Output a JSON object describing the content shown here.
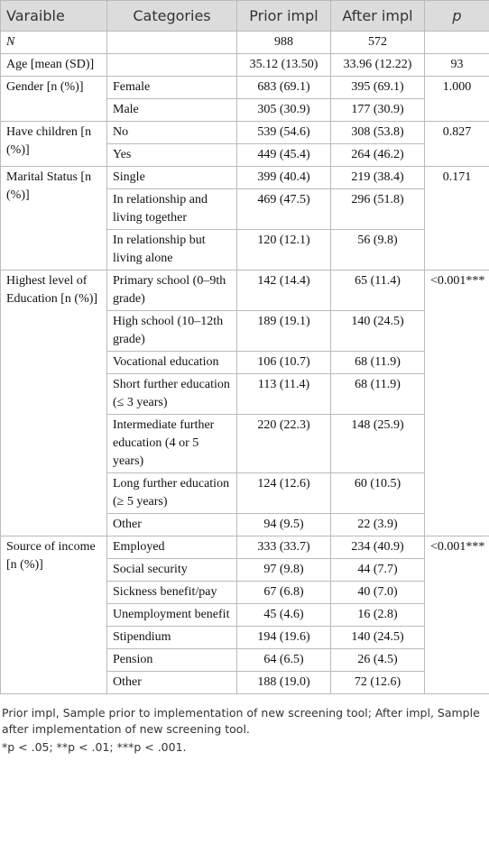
{
  "table": {
    "header": [
      "Varaible",
      "Categories",
      "Prior impl",
      "After impl",
      "p"
    ],
    "groups": [
      {
        "variable": "N",
        "rows": [
          {
            "prior": "988",
            "after": "572"
          }
        ]
      },
      {
        "variable": "Age [mean (SD)]",
        "p": "93",
        "rows": [
          {
            "prior": "35.12 (13.50)",
            "after": "33.96 (12.22)"
          }
        ]
      },
      {
        "variable": "Gender [n (%)]",
        "p": "1.000",
        "rows": [
          {
            "category": "Female",
            "prior": "683 (69.1)",
            "after": "395 (69.1)"
          },
          {
            "category": "Male",
            "prior": "305 (30.9)",
            "after": "177 (30.9)"
          }
        ]
      },
      {
        "variable": "Have children [n (%)]",
        "p": "0.827",
        "rows": [
          {
            "category": "No",
            "prior": "539 (54.6)",
            "after": "308 (53.8)"
          },
          {
            "category": "Yes",
            "prior": "449 (45.4)",
            "after": "264 (46.2)"
          }
        ]
      },
      {
        "variable": "Marital Status [n (%)]",
        "p": "0.171",
        "rows": [
          {
            "category": "Single",
            "prior": "399 (40.4)",
            "after": "219 (38.4)"
          },
          {
            "category": "In relationship and living together",
            "prior": "469 (47.5)",
            "after": "296 (51.8)"
          },
          {
            "category": "In relationship but living alone",
            "prior": "120 (12.1)",
            "after": "56 (9.8)"
          }
        ]
      },
      {
        "variable": "Highest level of Education [n (%)]",
        "p": "<0.001***",
        "rows": [
          {
            "category": "Primary school (0–9th grade)",
            "prior": "142 (14.4)",
            "after": "65 (11.4)"
          },
          {
            "category": "High school (10–12th grade)",
            "prior": "189 (19.1)",
            "after": "140 (24.5)"
          },
          {
            "category": "Vocational education",
            "prior": "106 (10.7)",
            "after": "68 (11.9)"
          },
          {
            "category": "Short further education (≤ 3 years)",
            "prior": "113 (11.4)",
            "after": "68 (11.9)"
          },
          {
            "category": "Intermediate further education (4 or 5 years)",
            "prior": "220 (22.3)",
            "after": "148 (25.9)"
          },
          {
            "category": "Long further education (≥ 5 years)",
            "prior": "124 (12.6)",
            "after": "60 (10.5)"
          },
          {
            "category": "Other",
            "prior": "94 (9.5)",
            "after": "22 (3.9)"
          }
        ]
      },
      {
        "variable": "Source of income [n (%)]",
        "p": "<0.001***",
        "rows": [
          {
            "category": "Employed",
            "prior": "333 (33.7)",
            "after": "234 (40.9)"
          },
          {
            "category": "Social security",
            "prior": "97 (9.8)",
            "after": "44 (7.7)"
          },
          {
            "category": "Sickness benefit/pay",
            "prior": "67 (6.8)",
            "after": "40 (7.0)"
          },
          {
            "category": "Unemployment benefit",
            "prior": "45 (4.6)",
            "after": "16 (2.8)"
          },
          {
            "category": "Stipendium",
            "prior": "194 (19.6)",
            "after": "140 (24.5)"
          },
          {
            "category": "Pension",
            "prior": "64 (6.5)",
            "after": "26 (4.5)"
          },
          {
            "category": "Other",
            "prior": "188 (19.0)",
            "after": "72 (12.6)"
          }
        ]
      }
    ]
  },
  "footnotes": [
    "Prior impl, Sample prior to implementation of new screening tool; After impl, Sample after implementation of new screening tool.",
    "*p < .05; **p < .01; ***p < .001."
  ]
}
